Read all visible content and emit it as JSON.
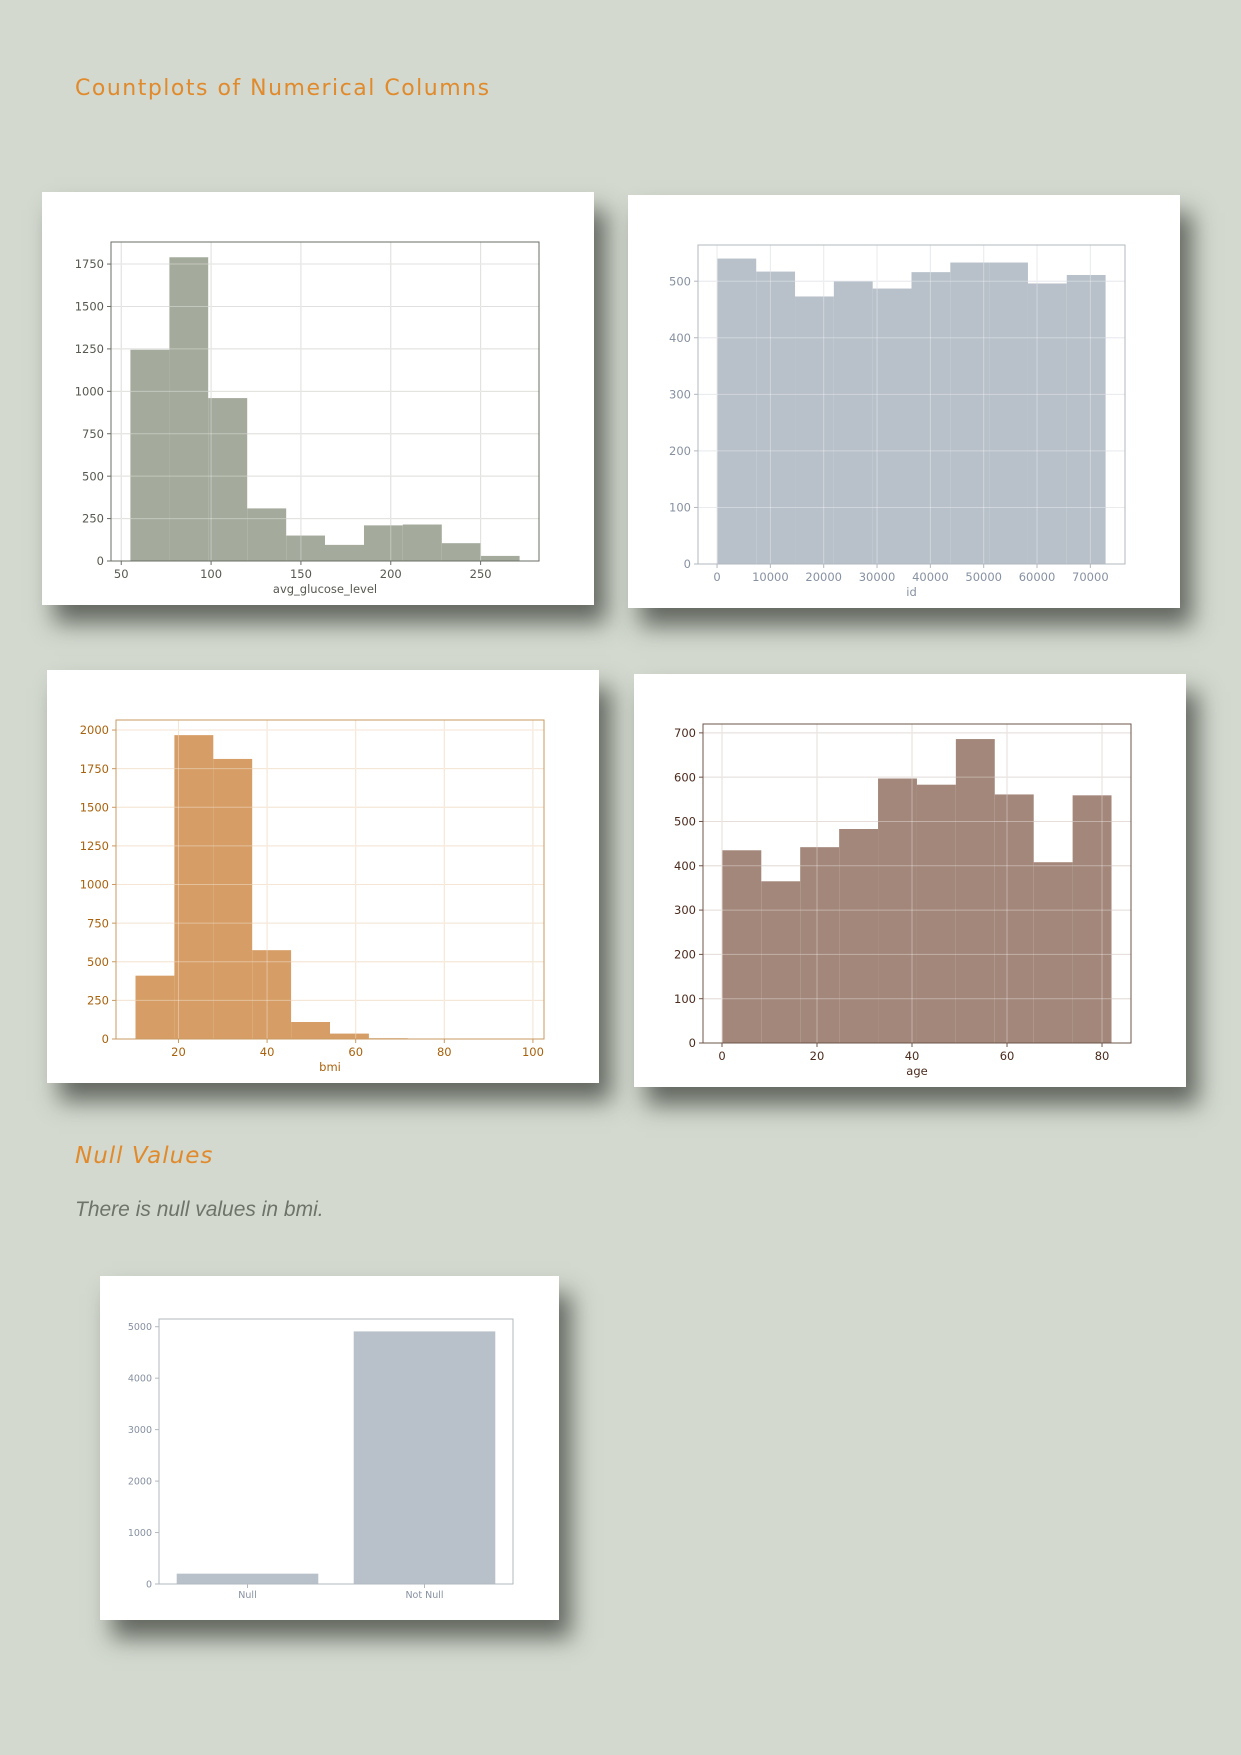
{
  "title": "Countplots of Numerical Columns",
  "null_section": {
    "heading": "Null Values",
    "text": "There is null values in bmi."
  },
  "chart_data": [
    {
      "id": "glucose",
      "type": "bar",
      "title": "",
      "xlabel": "avg_glucose_level",
      "ylabel": "",
      "bin_edges": [
        55.1,
        76.8,
        98.4,
        120.1,
        141.8,
        163.4,
        185.1,
        206.7,
        228.4,
        250.1,
        271.7
      ],
      "values": [
        1245,
        1790,
        960,
        310,
        150,
        95,
        210,
        215,
        105,
        30
      ],
      "xlim": [
        44.3,
        282.5
      ],
      "ylim": [
        0,
        1880
      ],
      "xticks": [
        50,
        100,
        150,
        200,
        250
      ],
      "yticks": [
        0,
        250,
        500,
        750,
        1000,
        1250,
        1500,
        1750
      ],
      "grid": true,
      "colors": {
        "bar": "#a4aa9c",
        "text": "#55594f",
        "axis": "#6a6d66",
        "grid": "#d0d2cd"
      }
    },
    {
      "id": "id",
      "type": "bar",
      "title": "",
      "xlabel": "id",
      "ylabel": "",
      "bin_edges": [
        67,
        7346,
        14625,
        21904,
        29183,
        36462,
        43741,
        51020,
        58299,
        65578,
        72857
      ],
      "values": [
        540,
        517,
        473,
        500,
        487,
        516,
        533,
        533,
        496,
        511
      ],
      "xlim": [
        -3572,
        76497
      ],
      "ylim": [
        0,
        564
      ],
      "xticks": [
        0,
        10000,
        20000,
        30000,
        40000,
        50000,
        60000,
        70000
      ],
      "yticks": [
        0,
        100,
        200,
        300,
        400,
        500
      ],
      "grid": true,
      "colors": {
        "bar": "#b8c0c9",
        "text": "#8791a0",
        "axis": "#b3b8bf",
        "grid": "#dde1e5"
      }
    },
    {
      "id": "bmi",
      "type": "bar",
      "title": "",
      "xlabel": "bmi",
      "ylabel": "",
      "bin_edges": [
        10.3,
        19.08,
        27.86,
        36.64,
        45.42,
        54.2,
        62.98,
        71.76,
        80.54,
        89.32,
        98.1
      ],
      "values": [
        410,
        1967,
        1813,
        575,
        110,
        35,
        5,
        2,
        1,
        1
      ],
      "xlim": [
        5.9,
        102.5
      ],
      "ylim": [
        0,
        2065
      ],
      "xticks": [
        20,
        40,
        60,
        80,
        100
      ],
      "yticks": [
        0,
        250,
        500,
        750,
        1000,
        1250,
        1500,
        1750,
        2000
      ],
      "grid": true,
      "colors": {
        "bar": "#d69e66",
        "text": "#a8620e",
        "axis": "#c89a62",
        "grid": "#efd8bd"
      }
    },
    {
      "id": "age",
      "type": "bar",
      "title": "",
      "xlabel": "age",
      "ylabel": "",
      "bin_edges": [
        0.08,
        8.27,
        16.46,
        24.66,
        32.85,
        41.04,
        49.23,
        57.42,
        65.62,
        73.81,
        82.0
      ],
      "values": [
        435,
        365,
        442,
        483,
        597,
        583,
        686,
        561,
        408,
        559
      ],
      "xlim": [
        -4.0,
        86.1
      ],
      "ylim": [
        0,
        720
      ],
      "xticks": [
        0,
        20,
        40,
        60,
        80
      ],
      "yticks": [
        0,
        100,
        200,
        300,
        400,
        500,
        600,
        700
      ],
      "grid": true,
      "colors": {
        "bar": "#a3877a",
        "text": "#4a2b1e",
        "axis": "#6e5448",
        "grid": "#d8cdc7"
      }
    },
    {
      "id": "nulls",
      "type": "bar",
      "title": "",
      "xlabel": "",
      "ylabel": "",
      "categories": [
        "Null",
        "Not Null"
      ],
      "values": [
        201,
        4909
      ],
      "ylim": [
        0,
        5150
      ],
      "yticks": [
        0,
        1000,
        2000,
        3000,
        4000,
        5000
      ],
      "grid": false,
      "colors": {
        "bar": "#b8c0c9",
        "text": "#8791a0",
        "axis": "#b3b8bf"
      }
    }
  ]
}
